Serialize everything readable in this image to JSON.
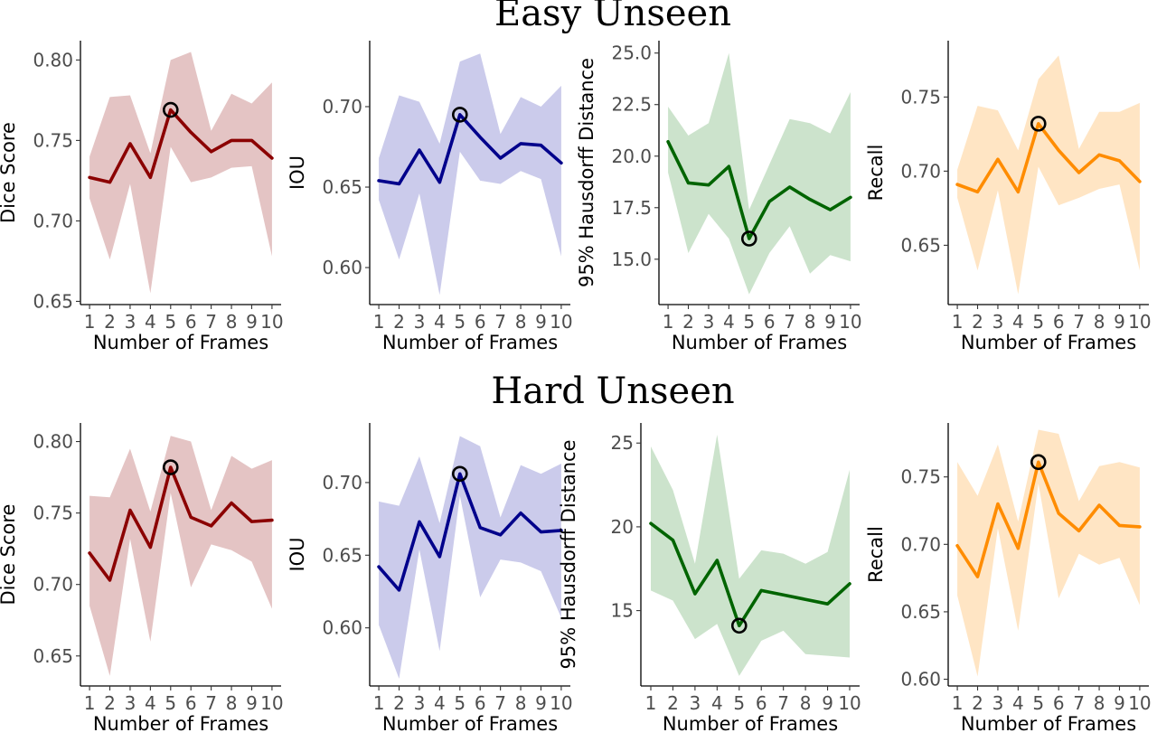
{
  "figure": {
    "row_titles": [
      "Easy Unseen",
      "Hard Unseen"
    ]
  },
  "chart_data": [
    {
      "type": "line",
      "panel": "easy-dice",
      "row": "Easy Unseen",
      "title": "",
      "xlabel": "Number of Frames",
      "ylabel": "Dice Score",
      "x": [
        1,
        2,
        3,
        4,
        5,
        6,
        7,
        8,
        9,
        10
      ],
      "series": [
        {
          "name": "Dice Score",
          "color": "#8b0000",
          "band_color": "#e4c4c4",
          "values": [
            0.727,
            0.724,
            0.748,
            0.727,
            0.769,
            0.755,
            0.743,
            0.75,
            0.75,
            0.739
          ],
          "lower": [
            0.714,
            0.676,
            0.723,
            0.655,
            0.746,
            0.724,
            0.727,
            0.733,
            0.734,
            0.678
          ],
          "upper": [
            0.74,
            0.777,
            0.778,
            0.742,
            0.8,
            0.805,
            0.756,
            0.779,
            0.773,
            0.786
          ]
        }
      ],
      "highlight": {
        "x": 5,
        "y": 0.769
      },
      "ylim": [
        0.648,
        0.812
      ],
      "yticks": [
        0.65,
        0.7,
        0.75,
        0.8
      ],
      "ytick_labels": [
        "0.65",
        "0.70",
        "0.75",
        "0.80"
      ]
    },
    {
      "type": "line",
      "panel": "easy-iou",
      "row": "Easy Unseen",
      "title": "",
      "xlabel": "Number of Frames",
      "ylabel": "IOU",
      "x": [
        1,
        2,
        3,
        4,
        5,
        6,
        7,
        8,
        9,
        10
      ],
      "series": [
        {
          "name": "IOU",
          "color": "#00008b",
          "band_color": "#cbcbeb",
          "values": [
            0.654,
            0.652,
            0.673,
            0.653,
            0.695,
            0.681,
            0.668,
            0.677,
            0.676,
            0.665
          ],
          "lower": [
            0.642,
            0.605,
            0.646,
            0.583,
            0.672,
            0.654,
            0.652,
            0.66,
            0.655,
            0.607
          ],
          "upper": [
            0.668,
            0.707,
            0.703,
            0.677,
            0.728,
            0.733,
            0.683,
            0.706,
            0.7,
            0.713
          ]
        }
      ],
      "highlight": {
        "x": 5,
        "y": 0.695
      },
      "ylim": [
        0.577,
        0.741
      ],
      "yticks": [
        0.6,
        0.65,
        0.7
      ],
      "ytick_labels": [
        "0.60",
        "0.65",
        "0.70"
      ]
    },
    {
      "type": "line",
      "panel": "easy-hd95",
      "row": "Easy Unseen",
      "title": "",
      "xlabel": "Number of Frames",
      "ylabel": "95% Hausdorff Distance",
      "x": [
        1,
        2,
        3,
        4,
        5,
        6,
        7,
        8,
        9,
        10
      ],
      "series": [
        {
          "name": "95% Hausdorff Distance",
          "color": "#006400",
          "band_color": "#cce3cc",
          "values": [
            20.7,
            18.7,
            18.6,
            19.5,
            16.0,
            17.8,
            18.5,
            17.9,
            17.4,
            18.0
          ],
          "lower": [
            19.2,
            15.3,
            17.2,
            16.0,
            13.3,
            15.3,
            16.6,
            14.3,
            15.2,
            14.9
          ],
          "upper": [
            22.4,
            21.0,
            21.6,
            25.0,
            17.4,
            19.6,
            21.8,
            21.6,
            21.1,
            23.1
          ]
        }
      ],
      "highlight": {
        "x": 5,
        "y": 16.0
      },
      "ylim": [
        12.8,
        25.6
      ],
      "yticks": [
        15.0,
        17.5,
        20.0,
        22.5,
        25.0
      ],
      "ytick_labels": [
        "15.0",
        "17.5",
        "20.0",
        "22.5",
        "25.0"
      ]
    },
    {
      "type": "line",
      "panel": "easy-recall",
      "row": "Easy Unseen",
      "title": "",
      "xlabel": "Number of Frames",
      "ylabel": "Recall",
      "x": [
        1,
        2,
        3,
        4,
        5,
        6,
        7,
        8,
        9,
        10
      ],
      "series": [
        {
          "name": "Recall",
          "color": "#ff8c00",
          "band_color": "#ffe5c4",
          "values": [
            0.691,
            0.686,
            0.708,
            0.686,
            0.732,
            0.714,
            0.699,
            0.711,
            0.707,
            0.693
          ],
          "lower": [
            0.682,
            0.633,
            0.687,
            0.617,
            0.703,
            0.677,
            0.682,
            0.688,
            0.691,
            0.633
          ],
          "upper": [
            0.701,
            0.744,
            0.741,
            0.714,
            0.762,
            0.778,
            0.715,
            0.74,
            0.74,
            0.746
          ]
        }
      ],
      "highlight": {
        "x": 5,
        "y": 0.732
      },
      "ylim": [
        0.61,
        0.788
      ],
      "yticks": [
        0.65,
        0.7,
        0.75
      ],
      "ytick_labels": [
        "0.65",
        "0.70",
        "0.75"
      ]
    },
    {
      "type": "line",
      "panel": "hard-dice",
      "row": "Hard Unseen",
      "title": "",
      "xlabel": "Number of Frames",
      "ylabel": "Dice Score",
      "x": [
        1,
        2,
        3,
        4,
        5,
        6,
        7,
        8,
        9,
        10
      ],
      "series": [
        {
          "name": "Dice Score",
          "color": "#8b0000",
          "band_color": "#e4c4c4",
          "values": [
            0.722,
            0.703,
            0.752,
            0.726,
            0.782,
            0.747,
            0.741,
            0.757,
            0.744,
            0.745
          ],
          "lower": [
            0.685,
            0.636,
            0.732,
            0.66,
            0.764,
            0.698,
            0.728,
            0.724,
            0.716,
            0.683
          ],
          "upper": [
            0.762,
            0.761,
            0.795,
            0.751,
            0.804,
            0.8,
            0.752,
            0.79,
            0.781,
            0.787
          ]
        }
      ],
      "highlight": {
        "x": 5,
        "y": 0.782
      },
      "ylim": [
        0.629,
        0.813
      ],
      "yticks": [
        0.65,
        0.7,
        0.75,
        0.8
      ],
      "ytick_labels": [
        "0.65",
        "0.70",
        "0.75",
        "0.80"
      ]
    },
    {
      "type": "line",
      "panel": "hard-iou",
      "row": "Hard Unseen",
      "title": "",
      "xlabel": "Number of Frames",
      "ylabel": "IOU",
      "x": [
        1,
        2,
        3,
        4,
        5,
        6,
        7,
        8,
        9,
        10
      ],
      "series": [
        {
          "name": "IOU",
          "color": "#00008b",
          "band_color": "#cbcbeb",
          "values": [
            0.642,
            0.626,
            0.673,
            0.649,
            0.706,
            0.669,
            0.664,
            0.679,
            0.666,
            0.667
          ],
          "lower": [
            0.602,
            0.565,
            0.654,
            0.584,
            0.691,
            0.621,
            0.647,
            0.645,
            0.639,
            0.607
          ],
          "upper": [
            0.687,
            0.684,
            0.718,
            0.672,
            0.732,
            0.725,
            0.676,
            0.712,
            0.706,
            0.713
          ]
        }
      ],
      "highlight": {
        "x": 5,
        "y": 0.706
      },
      "ylim": [
        0.56,
        0.741
      ],
      "yticks": [
        0.6,
        0.65,
        0.7
      ],
      "ytick_labels": [
        "0.60",
        "0.65",
        "0.70"
      ]
    },
    {
      "type": "line",
      "panel": "hard-hd95",
      "row": "Hard Unseen",
      "title": "",
      "xlabel": "Number of Frames",
      "ylabel": "95% Hausdorff Distance",
      "x": [
        1,
        2,
        3,
        4,
        5,
        6,
        7,
        8,
        9,
        10
      ],
      "series": [
        {
          "name": "95% Hausdorff Distance",
          "color": "#006400",
          "band_color": "#cce3cc",
          "values": [
            20.2,
            19.2,
            16.0,
            18.0,
            14.1,
            16.2,
            null,
            null,
            15.4,
            16.6
          ],
          "lower": [
            16.2,
            15.6,
            13.3,
            14.2,
            11.1,
            13.2,
            13.8,
            12.4,
            12.3,
            12.2
          ],
          "upper": [
            24.8,
            22.2,
            17.8,
            25.5,
            16.9,
            18.6,
            18.4,
            17.8,
            18.5,
            23.4
          ]
        }
      ],
      "highlight": {
        "x": 5,
        "y": 14.1
      },
      "ylim": [
        10.5,
        26.2
      ],
      "yticks": [
        15,
        20,
        25
      ],
      "ytick_labels": [
        "15",
        "20",
        "25"
      ]
    },
    {
      "type": "line",
      "panel": "hard-recall",
      "row": "Hard Unseen",
      "title": "",
      "xlabel": "Number of Frames",
      "ylabel": "Recall",
      "x": [
        1,
        2,
        3,
        4,
        5,
        6,
        7,
        8,
        9,
        10
      ],
      "series": [
        {
          "name": "Recall",
          "color": "#ff8c00",
          "band_color": "#ffe5c4",
          "values": [
            0.699,
            0.676,
            0.73,
            0.697,
            0.761,
            0.723,
            0.71,
            0.729,
            0.714,
            0.713
          ],
          "lower": [
            0.662,
            0.602,
            0.712,
            0.636,
            0.745,
            0.66,
            0.693,
            0.685,
            0.69,
            0.655
          ],
          "upper": [
            0.761,
            0.736,
            0.774,
            0.717,
            0.785,
            0.782,
            0.732,
            0.758,
            0.761,
            0.757
          ]
        }
      ],
      "highlight": {
        "x": 5,
        "y": 0.761
      },
      "ylim": [
        0.595,
        0.79
      ],
      "yticks": [
        0.6,
        0.65,
        0.7,
        0.75
      ],
      "ytick_labels": [
        "0.60",
        "0.65",
        "0.70",
        "0.75"
      ]
    }
  ]
}
